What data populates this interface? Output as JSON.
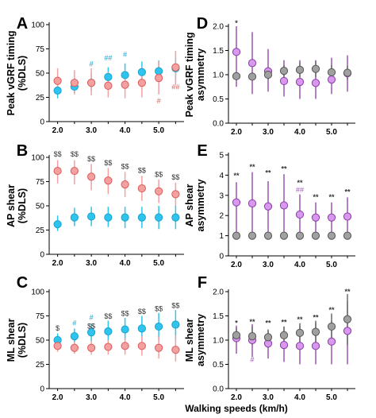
{
  "figure": {
    "x_axis_label": "Walking speeds (km/h)"
  },
  "colors": {
    "red_fill": "#f2a0a0",
    "red_edge": "#e05a5a",
    "blue_fill": "#2ec4ee",
    "blue_edge": "#1aa3cc",
    "purple_fill": "#d898ee",
    "purple_line": "#8b3aa6",
    "gray_fill": "#a0a0a0",
    "gray_line": "#555555",
    "red_ann": "#e05a5a",
    "blue_ann": "#1aa3cc",
    "purple_ann": "#9b59b6",
    "black_ann": "#333333"
  },
  "chart_data": [
    {
      "panel": "A",
      "type": "scatter",
      "ylabel": "Peak vGRF timing (%DLS)",
      "ylim": [
        0,
        100
      ],
      "yticks": [
        "0",
        "25",
        "50",
        "75",
        "100"
      ],
      "xticks": [
        "2.0",
        "3.0",
        "4.0",
        "5.0"
      ],
      "x_tick_values": [
        2.0,
        3.0,
        4.0,
        5.0
      ],
      "x": [
        2.0,
        2.5,
        3.0,
        3.5,
        4.0,
        4.5,
        5.0,
        5.5
      ],
      "series": [
        {
          "color": "blue",
          "values": [
            32,
            36,
            40,
            46,
            48,
            51,
            52,
            55
          ],
          "lower": [
            24,
            30,
            32,
            37,
            38,
            40,
            41,
            44
          ],
          "upper": [
            41,
            43,
            49,
            56,
            60,
            62,
            63,
            66
          ]
        },
        {
          "color": "red",
          "values": [
            42,
            40,
            40,
            37,
            38,
            40,
            45,
            56
          ],
          "lower": [
            30,
            28,
            27,
            25,
            24,
            25,
            28,
            38
          ],
          "upper": [
            55,
            53,
            55,
            51,
            53,
            56,
            62,
            73
          ]
        }
      ],
      "annotations": [
        {
          "text": "#",
          "x": 3.0,
          "y": 57,
          "color": "blue"
        },
        {
          "text": "##",
          "x": 3.5,
          "y": 63,
          "color": "blue"
        },
        {
          "text": "#",
          "x": 4.0,
          "y": 67,
          "color": "blue"
        },
        {
          "text": "#",
          "x": 5.0,
          "y": 19,
          "color": "red"
        },
        {
          "text": "##",
          "x": 5.5,
          "y": 33,
          "color": "red"
        }
      ]
    },
    {
      "panel": "B",
      "type": "scatter",
      "ylabel": "AP shear (%DLS)",
      "ylim": [
        0,
        100
      ],
      "yticks": [
        "0",
        "25",
        "50",
        "75",
        "100"
      ],
      "xticks": [
        "2.0",
        "3.0",
        "4.0",
        "5.0"
      ],
      "x_tick_values": [
        2.0,
        3.0,
        4.0,
        5.0
      ],
      "x": [
        2.0,
        2.5,
        3.0,
        3.5,
        4.0,
        4.5,
        5.0,
        5.5
      ],
      "series": [
        {
          "color": "blue",
          "values": [
            31,
            38,
            39,
            38,
            38,
            38,
            38,
            38
          ],
          "lower": [
            24,
            29,
            29,
            28,
            27,
            27,
            26,
            26
          ],
          "upper": [
            40,
            48,
            49,
            49,
            49,
            49,
            50,
            50
          ]
        },
        {
          "color": "red",
          "values": [
            86,
            86,
            80,
            76,
            72,
            68,
            65,
            62
          ],
          "lower": [
            73,
            72,
            66,
            62,
            59,
            55,
            53,
            50
          ],
          "upper": [
            97,
            97,
            93,
            89,
            85,
            81,
            77,
            74
          ]
        }
      ],
      "annotations": [
        {
          "text": "$$",
          "x": 2.0,
          "y": 101,
          "color": "black"
        },
        {
          "text": "$$",
          "x": 2.5,
          "y": 101,
          "color": "black"
        },
        {
          "text": "$$",
          "x": 3.0,
          "y": 96,
          "color": "black"
        },
        {
          "text": "$$",
          "x": 3.5,
          "y": 92,
          "color": "black"
        },
        {
          "text": "$$",
          "x": 4.0,
          "y": 88,
          "color": "black"
        },
        {
          "text": "$$",
          "x": 4.5,
          "y": 84,
          "color": "black"
        },
        {
          "text": "$$",
          "x": 5.0,
          "y": 80,
          "color": "black"
        },
        {
          "text": "$$",
          "x": 5.5,
          "y": 77,
          "color": "black"
        }
      ]
    },
    {
      "panel": "C",
      "type": "scatter",
      "ylabel": "ML shear (%DLS)",
      "ylim": [
        0,
        100
      ],
      "yticks": [
        "0",
        "25",
        "50",
        "75",
        "100"
      ],
      "xticks": [
        "2.0",
        "3.0",
        "4.0",
        "5.0"
      ],
      "x_tick_values": [
        2.0,
        3.0,
        4.0,
        5.0
      ],
      "x": [
        2.0,
        2.5,
        3.0,
        3.5,
        4.0,
        4.5,
        5.0,
        5.5
      ],
      "series": [
        {
          "color": "blue",
          "values": [
            50,
            54,
            58,
            59,
            61,
            62,
            64,
            66
          ],
          "lower": [
            44,
            47,
            49,
            49,
            50,
            49,
            50,
            50
          ],
          "upper": [
            57,
            62,
            67,
            70,
            73,
            75,
            78,
            81
          ]
        },
        {
          "color": "red",
          "values": [
            44,
            42,
            42,
            43,
            44,
            44,
            42,
            40
          ],
          "lower": [
            38,
            36,
            35,
            35,
            35,
            34,
            31,
            28
          ],
          "upper": [
            50,
            48,
            49,
            50,
            52,
            54,
            54,
            55
          ]
        }
      ],
      "annotations": [
        {
          "text": "$",
          "x": 2.0,
          "y": 60,
          "color": "black"
        },
        {
          "text": "#",
          "x": 2.5,
          "y": 65,
          "color": "blue"
        },
        {
          "text": "#",
          "x": 3.0,
          "y": 71,
          "color": "blue"
        },
        {
          "text": "$$",
          "x": 3.0,
          "y": 62,
          "color": "black"
        },
        {
          "text": "$$",
          "x": 3.5,
          "y": 72,
          "color": "black"
        },
        {
          "text": "$$",
          "x": 4.0,
          "y": 75,
          "color": "black"
        },
        {
          "text": "$$",
          "x": 4.5,
          "y": 77,
          "color": "black"
        },
        {
          "text": "$$",
          "x": 5.0,
          "y": 80,
          "color": "black"
        },
        {
          "text": "$$",
          "x": 5.5,
          "y": 83,
          "color": "black"
        }
      ]
    },
    {
      "panel": "D",
      "type": "scatter",
      "ylabel": "Peak vGRF timing asymmetry",
      "ylim": [
        0,
        2.0
      ],
      "yticks": [
        "0.0",
        "0.5",
        "1.0",
        "1.5",
        "2.0"
      ],
      "xticks": [
        "2.0",
        "3.0",
        "4.0",
        "5.0"
      ],
      "x_tick_values": [
        2.0,
        3.0,
        4.0,
        5.0
      ],
      "x": [
        2.0,
        2.5,
        3.0,
        3.5,
        4.0,
        4.5,
        5.0,
        5.5
      ],
      "series": [
        {
          "color": "purple",
          "values": [
            1.47,
            1.24,
            1.07,
            0.87,
            0.85,
            0.83,
            0.9,
            1.03
          ],
          "lower": [
            0.75,
            0.6,
            0.65,
            0.55,
            0.5,
            0.5,
            0.6,
            0.65
          ],
          "upper": [
            2.0,
            1.88,
            1.53,
            1.3,
            1.3,
            1.3,
            1.35,
            1.4
          ]
        },
        {
          "color": "gray",
          "values": [
            0.97,
            0.96,
            1.0,
            1.08,
            1.1,
            1.12,
            1.05,
            1.04
          ],
          "lower": [
            0.9,
            0.88,
            0.9,
            0.95,
            0.95,
            0.95,
            0.9,
            0.9
          ],
          "upper": [
            1.05,
            1.05,
            1.12,
            1.2,
            1.25,
            1.28,
            1.2,
            1.18
          ]
        }
      ],
      "annotations": [
        {
          "text": "*",
          "x": 2.0,
          "y": 2.02,
          "color": "black"
        }
      ]
    },
    {
      "panel": "E",
      "type": "scatter",
      "ylabel": "AP shear asymmetry",
      "ylim": [
        0,
        5
      ],
      "yticks": [
        "0",
        "1",
        "2",
        "3",
        "4",
        "5"
      ],
      "xticks": [
        "2.0",
        "3.0",
        "4.0",
        "5.0"
      ],
      "x_tick_values": [
        2.0,
        3.0,
        4.0,
        5.0
      ],
      "x": [
        2.0,
        2.5,
        3.0,
        3.5,
        4.0,
        4.5,
        5.0,
        5.5
      ],
      "series": [
        {
          "color": "purple",
          "values": [
            2.65,
            2.6,
            2.45,
            2.5,
            2.05,
            1.9,
            1.9,
            1.95
          ],
          "lower": [
            1.0,
            1.0,
            1.0,
            1.0,
            1.0,
            1.0,
            1.0,
            1.0
          ],
          "upper": [
            3.65,
            4.15,
            3.7,
            4.05,
            3.05,
            2.65,
            2.65,
            2.9
          ]
        },
        {
          "color": "gray",
          "values": [
            1.0,
            1.0,
            1.0,
            1.0,
            1.0,
            1.0,
            1.0,
            1.0
          ],
          "lower": [
            1.0,
            1.0,
            1.0,
            1.0,
            1.0,
            1.0,
            1.0,
            1.0
          ],
          "upper": [
            1.0,
            1.0,
            1.0,
            1.0,
            1.0,
            1.0,
            1.0,
            1.0
          ]
        }
      ],
      "annotations": [
        {
          "text": "**",
          "x": 2.0,
          "y": 3.85,
          "color": "black"
        },
        {
          "text": "**",
          "x": 2.5,
          "y": 4.3,
          "color": "black"
        },
        {
          "text": "**",
          "x": 3.0,
          "y": 4.0,
          "color": "black"
        },
        {
          "text": "**",
          "x": 3.5,
          "y": 4.2,
          "color": "black"
        },
        {
          "text": "**",
          "x": 4.0,
          "y": 3.5,
          "color": "black"
        },
        {
          "text": "##",
          "x": 4.0,
          "y": 3.15,
          "color": "purple"
        },
        {
          "text": "**",
          "x": 4.5,
          "y": 2.8,
          "color": "black"
        },
        {
          "text": "**",
          "x": 5.0,
          "y": 2.8,
          "color": "black"
        },
        {
          "text": "**",
          "x": 5.5,
          "y": 3.05,
          "color": "black"
        }
      ]
    },
    {
      "panel": "F",
      "type": "scatter",
      "ylabel": "ML shear asymmetry",
      "ylim": [
        0,
        2.0
      ],
      "yticks": [
        "0.0",
        "0.5",
        "1.0",
        "1.5",
        "2.0"
      ],
      "xticks": [
        "2.0",
        "3.0",
        "4.0",
        "5.0"
      ],
      "x_tick_values": [
        2.0,
        3.0,
        4.0,
        5.0
      ],
      "x": [
        2.0,
        2.5,
        3.0,
        3.5,
        4.0,
        4.5,
        5.0,
        5.5
      ],
      "series": [
        {
          "color": "purple",
          "values": [
            1.04,
            1.0,
            0.93,
            0.9,
            0.88,
            0.88,
            0.97,
            1.19
          ],
          "lower": [
            0.72,
            0.65,
            0.62,
            0.55,
            0.5,
            0.5,
            0.5,
            0.5
          ],
          "upper": [
            1.3,
            1.33,
            1.2,
            1.28,
            1.3,
            1.35,
            1.4,
            1.8
          ]
        },
        {
          "color": "gray",
          "values": [
            1.1,
            1.08,
            1.06,
            1.1,
            1.15,
            1.17,
            1.28,
            1.43
          ],
          "lower": [
            0.95,
            0.9,
            0.9,
            0.9,
            0.95,
            0.95,
            1.0,
            0.9
          ],
          "upper": [
            1.25,
            1.28,
            1.22,
            1.28,
            1.35,
            1.4,
            1.55,
            1.95
          ]
        }
      ],
      "annotations": [
        {
          "text": "*",
          "x": 2.0,
          "y": 1.3,
          "color": "black"
        },
        {
          "text": "**",
          "x": 2.5,
          "y": 1.33,
          "color": "black"
        },
        {
          "text": "#",
          "x": 2.5,
          "y": 0.55,
          "color": "purple"
        },
        {
          "text": "**",
          "x": 3.0,
          "y": 1.3,
          "color": "black"
        },
        {
          "text": "**",
          "x": 3.5,
          "y": 1.32,
          "color": "black"
        },
        {
          "text": "**",
          "x": 4.0,
          "y": 1.38,
          "color": "black"
        },
        {
          "text": "**",
          "x": 4.5,
          "y": 1.42,
          "color": "black"
        },
        {
          "text": "**",
          "x": 5.0,
          "y": 1.57,
          "color": "black"
        },
        {
          "text": "**",
          "x": 5.5,
          "y": 1.95,
          "color": "black"
        }
      ]
    }
  ]
}
